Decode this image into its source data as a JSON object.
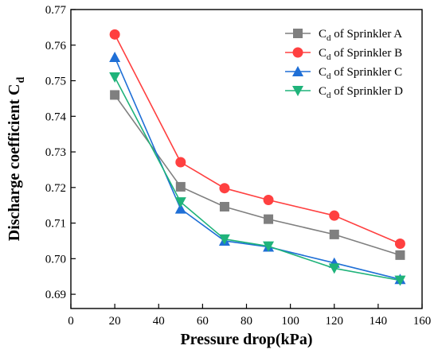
{
  "chart_data": {
    "type": "line",
    "xlabel": "Pressure drop(kPa)",
    "ylabel_main": "Discharge coefficient C",
    "ylabel_sub": "d",
    "xlim": [
      0,
      160
    ],
    "ylim": [
      0.686,
      0.77
    ],
    "x_ticks": [
      0,
      20,
      40,
      60,
      80,
      100,
      120,
      140,
      160
    ],
    "x_tick_labels": [
      "0",
      "20",
      "40",
      "60",
      "80",
      "100",
      "120",
      "140",
      "160"
    ],
    "y_ticks": [
      0.69,
      0.7,
      0.71,
      0.72,
      0.73,
      0.74,
      0.75,
      0.76,
      0.77
    ],
    "y_tick_labels": [
      "0.69",
      "0.70",
      "0.71",
      "0.72",
      "0.73",
      "0.74",
      "0.75",
      "0.76",
      "0.77"
    ],
    "grid": false,
    "legend_position": "top-right",
    "x": [
      20,
      50,
      70,
      90,
      120,
      150
    ],
    "series": [
      {
        "name_main": "C",
        "name_sub": "d",
        "name_rest": " of Sprinkler A",
        "marker": "square",
        "color": "#7f7f7f",
        "values": [
          0.746,
          0.7202,
          0.7146,
          0.7111,
          0.7068,
          0.701
        ]
      },
      {
        "name_main": "C",
        "name_sub": "d",
        "name_rest": " of Sprinkler B",
        "marker": "circle",
        "color": "#ff4040",
        "values": [
          0.763,
          0.7271,
          0.7198,
          0.7165,
          0.7121,
          0.7042
        ]
      },
      {
        "name_main": "C",
        "name_sub": "d",
        "name_rest": " of Sprinkler C",
        "marker": "triangle-up",
        "color": "#1f6fd6",
        "values": [
          0.7566,
          0.714,
          0.705,
          0.7033,
          0.6988,
          0.6942
        ]
      },
      {
        "name_main": "C",
        "name_sub": "d",
        "name_rest": " of Sprinkler D",
        "marker": "triangle-down",
        "color": "#1fb37a",
        "values": [
          0.751,
          0.7159,
          0.7055,
          0.7035,
          0.6973,
          0.6939
        ]
      }
    ]
  }
}
